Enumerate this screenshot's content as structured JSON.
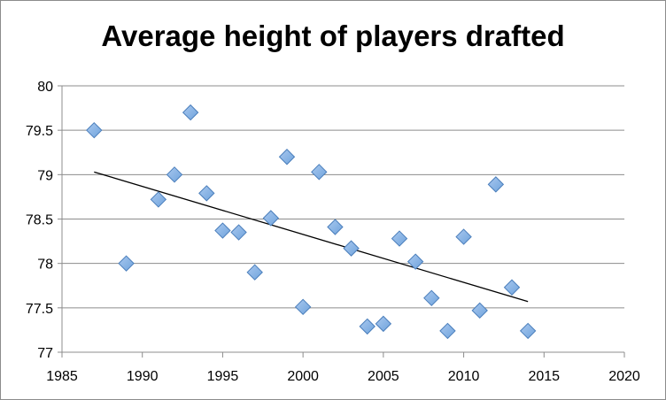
{
  "chart_data": {
    "type": "scatter",
    "title": "Average height of players drafted",
    "xlabel": "",
    "ylabel": "",
    "xlim": [
      1985,
      2020
    ],
    "ylim": [
      77,
      80
    ],
    "xticks": [
      "1985",
      "1990",
      "1995",
      "2000",
      "2005",
      "2010",
      "2015",
      "2020"
    ],
    "yticks": [
      "77",
      "77.5",
      "78",
      "78.5",
      "79",
      "79.5",
      "80"
    ],
    "grid": "horizontal",
    "legend": "none",
    "series": [
      {
        "marker": "diamond",
        "color": "#6fa3dc",
        "points": [
          [
            1987,
            79.5
          ],
          [
            1989,
            78.0
          ],
          [
            1991,
            78.72
          ],
          [
            1992,
            79.0
          ],
          [
            1993,
            79.7
          ],
          [
            1994,
            78.79
          ],
          [
            1995,
            78.37
          ],
          [
            1996,
            78.35
          ],
          [
            1997,
            77.9
          ],
          [
            1998,
            78.51
          ],
          [
            1999,
            79.2
          ],
          [
            2000,
            77.51
          ],
          [
            2001,
            79.03
          ],
          [
            2002,
            78.41
          ],
          [
            2003,
            78.17
          ],
          [
            2004,
            77.29
          ],
          [
            2005,
            77.32
          ],
          [
            2006,
            78.28
          ],
          [
            2007,
            78.02
          ],
          [
            2008,
            77.61
          ],
          [
            2009,
            77.24
          ],
          [
            2010,
            78.3
          ],
          [
            2011,
            77.47
          ],
          [
            2012,
            78.89
          ],
          [
            2013,
            77.73
          ],
          [
            2014,
            77.24
          ]
        ]
      }
    ],
    "trendline": {
      "type": "linear",
      "color": "#000000",
      "from": [
        1987,
        79.03
      ],
      "to": [
        2014,
        77.57
      ]
    }
  }
}
